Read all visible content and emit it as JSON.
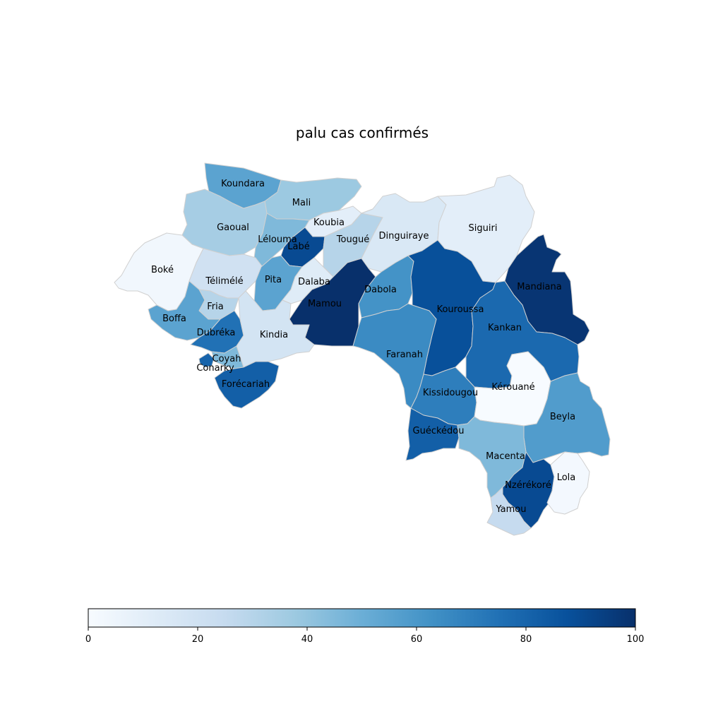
{
  "title": "palu cas confirmés",
  "colormap": {
    "name": "Blues",
    "stops": [
      "#f7fbff",
      "#deebf7",
      "#c6dbef",
      "#9ecae1",
      "#6baed6",
      "#4292c6",
      "#2171b5",
      "#08519c",
      "#08306b"
    ],
    "min": 0,
    "max": 100,
    "ticks": [
      "0",
      "20",
      "40",
      "60",
      "80",
      "100"
    ],
    "tick_values": [
      0,
      20,
      40,
      60,
      80,
      100
    ]
  },
  "border_color": "#d0d0d0",
  "regions": [
    {
      "name": "Koundara",
      "value": 55
    },
    {
      "name": "Mali",
      "value": 38
    },
    {
      "name": "Gaoual",
      "value": 35
    },
    {
      "name": "Koubia",
      "value": 10
    },
    {
      "name": "Lélouma",
      "value": 45
    },
    {
      "name": "Labé",
      "value": 90
    },
    {
      "name": "Tougué",
      "value": 30
    },
    {
      "name": "Dinguiraye",
      "value": 15
    },
    {
      "name": "Siguiri",
      "value": 10
    },
    {
      "name": "Boké",
      "value": 3
    },
    {
      "name": "Télimélé",
      "value": 20
    },
    {
      "name": "Pita",
      "value": 55
    },
    {
      "name": "Dalaba",
      "value": 12
    },
    {
      "name": "Mamou",
      "value": 100
    },
    {
      "name": "Dabola",
      "value": 62
    },
    {
      "name": "Kouroussa",
      "value": 88
    },
    {
      "name": "Mandiana",
      "value": 98
    },
    {
      "name": "Fria",
      "value": 30
    },
    {
      "name": "Boffa",
      "value": 55
    },
    {
      "name": "Dubréka",
      "value": 75
    },
    {
      "name": "Kindia",
      "value": 18
    },
    {
      "name": "Faranah",
      "value": 65
    },
    {
      "name": "Kankan",
      "value": 78
    },
    {
      "name": "Coyah",
      "value": 45
    },
    {
      "name": "Conarky",
      "value": 80
    },
    {
      "name": "Forécariah",
      "value": 82
    },
    {
      "name": "Kissidougou",
      "value": 70
    },
    {
      "name": "Kérouané",
      "value": 0
    },
    {
      "name": "Beyla",
      "value": 58
    },
    {
      "name": "Guéckédou",
      "value": 82
    },
    {
      "name": "Macenta",
      "value": 45
    },
    {
      "name": "Nzérékoré",
      "value": 90
    },
    {
      "name": "Lola",
      "value": 2
    },
    {
      "name": "Yamou",
      "value": 25
    }
  ]
}
